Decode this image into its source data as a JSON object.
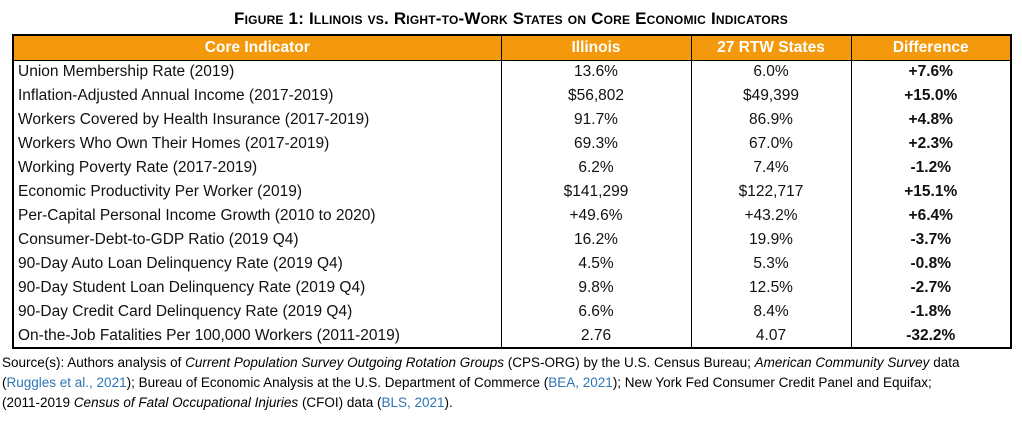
{
  "figure": {
    "title": "Figure 1: Illinois vs. Right-to-Work States on Core Economic Indicators"
  },
  "chart_data": {
    "type": "table",
    "title": "Figure 1: Illinois vs. Right-to-Work States on Core Economic Indicators",
    "columns": [
      "Core Indicator",
      "Illinois",
      "27 RTW States",
      "Difference"
    ],
    "rows": [
      [
        "Union Membership Rate (2019)",
        "13.6%",
        "6.0%",
        "+7.6%"
      ],
      [
        "Inflation-Adjusted Annual Income (2017-2019)",
        "$56,802",
        "$49,399",
        "+15.0%"
      ],
      [
        "Workers Covered by Health Insurance (2017-2019)",
        "91.7%",
        "86.9%",
        "+4.8%"
      ],
      [
        "Workers Who Own Their Homes (2017-2019)",
        "69.3%",
        "67.0%",
        "+2.3%"
      ],
      [
        "Working Poverty Rate (2017-2019)",
        "6.2%",
        "7.4%",
        "-1.2%"
      ],
      [
        "Economic Productivity Per Worker (2019)",
        "$141,299",
        "$122,717",
        "+15.1%"
      ],
      [
        "Per-Capital Personal Income Growth (2010 to 2020)",
        "+49.6%",
        "+43.2%",
        "+6.4%"
      ],
      [
        "Consumer-Debt-to-GDP Ratio (2019 Q4)",
        "16.2%",
        "19.9%",
        "-3.7%"
      ],
      [
        "90-Day Auto Loan Delinquency Rate (2019 Q4)",
        "4.5%",
        "5.3%",
        "-0.8%"
      ],
      [
        "90-Day Student Loan Delinquency Rate (2019 Q4)",
        "9.8%",
        "12.5%",
        "-2.7%"
      ],
      [
        "90-Day Credit Card Delinquency Rate (2019 Q4)",
        "6.6%",
        "8.4%",
        "-1.8%"
      ],
      [
        "On-the-Job Fatalities Per 100,000 Workers (2011-2019)",
        "2.76",
        "4.07",
        "-32.2%"
      ]
    ]
  },
  "source": {
    "lines": [
      [
        {
          "text": "Source(s): Authors analysis of ",
          "style": "plain"
        },
        {
          "text": "Current Population Survey Outgoing Rotation Groups",
          "style": "italic"
        },
        {
          "text": " (CPS-ORG) by the U.S. Census Bureau; ",
          "style": "plain"
        },
        {
          "text": "American Community Survey",
          "style": "italic"
        },
        {
          "text": " data",
          "style": "plain"
        }
      ],
      [
        {
          "text": "(",
          "style": "plain"
        },
        {
          "text": "Ruggles et al., 2021",
          "style": "link"
        },
        {
          "text": ");  Bureau of Economic Analysis at the U.S. Department of Commerce (",
          "style": "plain"
        },
        {
          "text": "BEA, 2021",
          "style": "link"
        },
        {
          "text": "); New York Fed Consumer Credit Panel and Equifax;",
          "style": "plain"
        }
      ],
      [
        {
          "text": "(2011-2019 ",
          "style": "plain"
        },
        {
          "text": "Census of Fatal Occupational Injuries",
          "style": "italic"
        },
        {
          "text": " (CFOI) data (",
          "style": "plain"
        },
        {
          "text": "BLS, 2021",
          "style": "link"
        },
        {
          "text": ").",
          "style": "plain"
        }
      ]
    ]
  },
  "colors": {
    "header_bg": "#F4990B",
    "header_text": "#FFFFFF",
    "link": "#2E75B6",
    "border": "#000000"
  }
}
